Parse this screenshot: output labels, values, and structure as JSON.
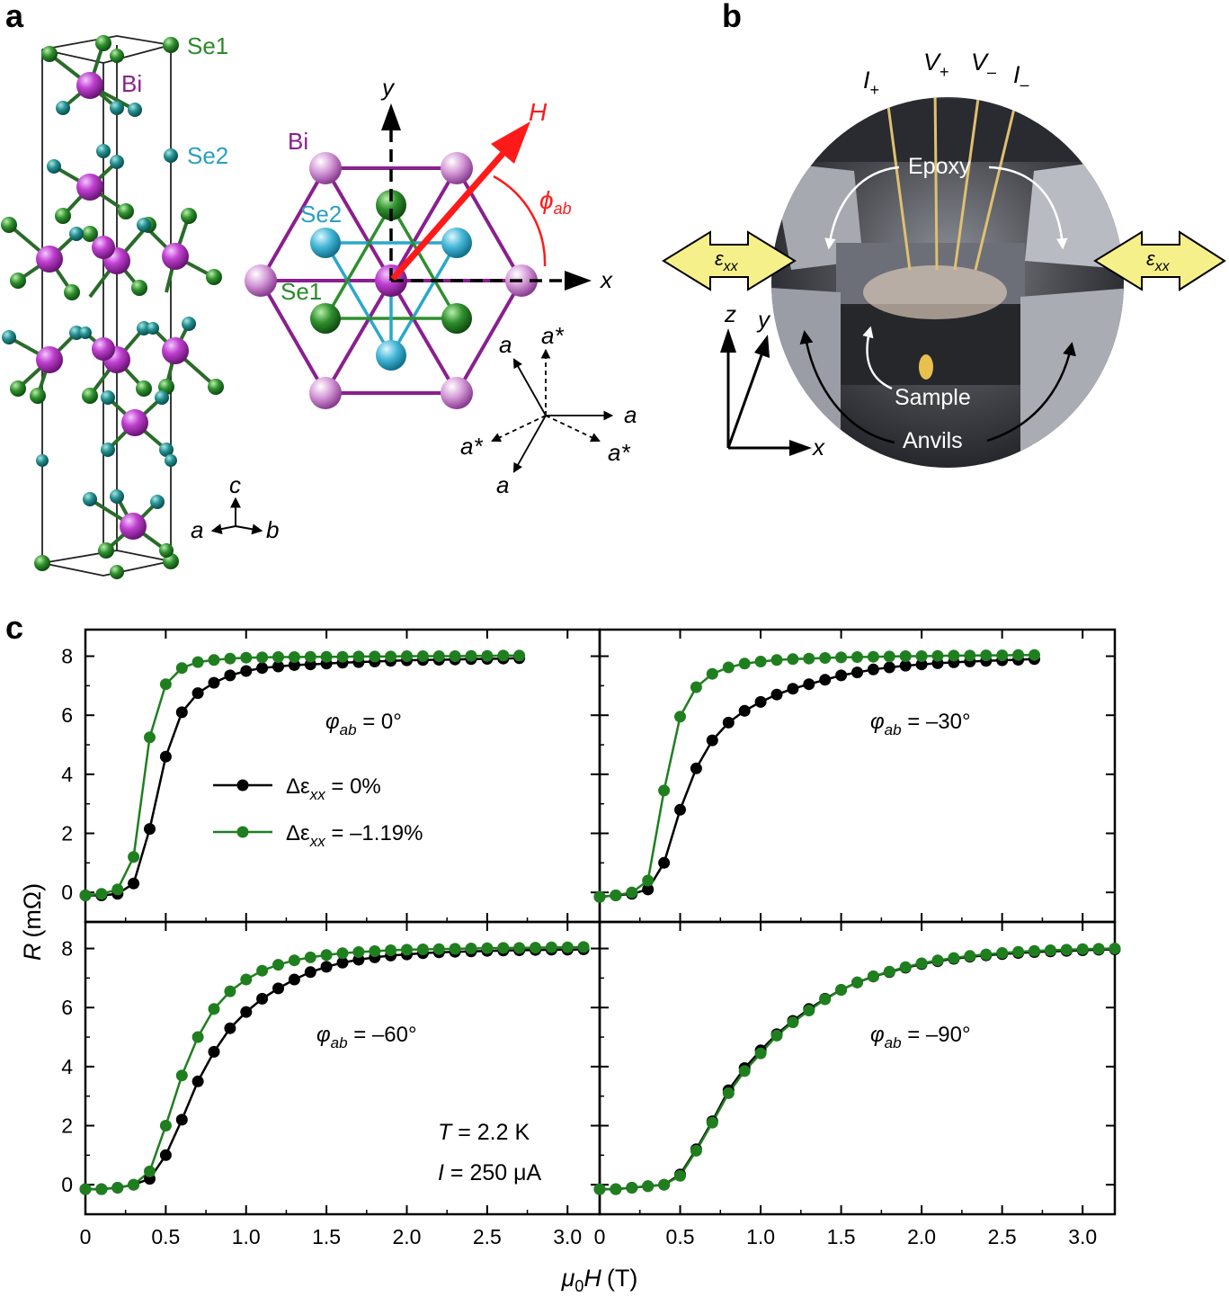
{
  "panels": {
    "a_label": "a",
    "b_label": "b",
    "c_label": "c"
  },
  "panel_a": {
    "atoms": {
      "se1": "Se1",
      "bi": "Bi",
      "se2": "Se2"
    },
    "crystal_axes": {
      "c": "c",
      "a": "a",
      "b": "b"
    },
    "plane_axes": {
      "x": "x",
      "y": "y"
    },
    "field": "H",
    "angle": "ϕ",
    "angle_sub": "ab",
    "lattice_vectors": {
      "a": "a",
      "a_star": "a*"
    },
    "colors": {
      "bi": "#c040d0",
      "se1": "#2f8f2f",
      "se2": "#2aa8c8",
      "bi_frame": "#8a1f8f",
      "field": "#ff1a1a"
    }
  },
  "panel_b": {
    "leads": [
      {
        "main": "I",
        "sub": "+"
      },
      {
        "main": "V",
        "sub": "+"
      },
      {
        "main": "V",
        "sub": "–"
      },
      {
        "main": "I",
        "sub": "–"
      }
    ],
    "labels": {
      "epoxy": "Epoxy",
      "sample": "Sample",
      "anvils": "Anvils"
    },
    "strain": {
      "main": "ε",
      "sub": "xx"
    },
    "axes": {
      "z": "z",
      "y": "y",
      "x": "x"
    },
    "colors": {
      "arrow_fill": "#f6f08a"
    }
  },
  "panel_c": {
    "ylabel_main": "R",
    "ylabel_unit": "(mΩ)",
    "xlabel_mu": "μ",
    "xlabel_sub": "0",
    "xlabel_main": "H",
    "xlabel_unit": "(T)",
    "conditions": {
      "T": "T = 2.2 K",
      "T_var": "T",
      "T_rest": " = 2.2 K",
      "I_var": "I",
      "I_rest": " = 250 μA"
    },
    "colors": {
      "unstrained": "#000000",
      "strained": "#1f7f1f"
    }
  },
  "chart_data": {
    "type": "line",
    "xlabel": "μ0H (T)",
    "ylabel": "R (mΩ)",
    "xlim": [
      0,
      3.2
    ],
    "ylim": [
      -1,
      8.9
    ],
    "xticks": [
      "0",
      "0.5",
      "1.0",
      "1.5",
      "2.0",
      "2.5",
      "3.0"
    ],
    "yticks": [
      "0",
      "2",
      "4",
      "6",
      "8"
    ],
    "legend": [
      {
        "label": "Δε",
        "sub": "xx",
        "rest": " = 0%"
      },
      {
        "label": "Δε",
        "sub": "xx",
        "rest": " = –1.19%"
      }
    ],
    "subplots": [
      {
        "angle_label": "φ",
        "angle_sub": "ab",
        "angle_value": " = 0°",
        "series": [
          {
            "name": "Δεxx = 0%",
            "x": [
              0,
              0.1,
              0.2,
              0.3,
              0.4,
              0.5,
              0.6,
              0.7,
              0.8,
              0.9,
              1.0,
              1.1,
              1.2,
              1.3,
              1.4,
              1.5,
              1.6,
              1.7,
              1.8,
              1.9,
              2.0,
              2.1,
              2.2,
              2.3,
              2.4,
              2.5,
              2.6,
              2.7
            ],
            "y": [
              -0.1,
              -0.1,
              -0.05,
              0.3,
              2.15,
              4.6,
              6.1,
              6.75,
              7.1,
              7.35,
              7.5,
              7.6,
              7.65,
              7.7,
              7.72,
              7.75,
              7.78,
              7.8,
              7.82,
              7.84,
              7.86,
              7.87,
              7.88,
              7.89,
              7.9,
              7.91,
              7.92,
              7.93
            ]
          },
          {
            "name": "Δεxx = –1.19%",
            "x": [
              0,
              0.1,
              0.2,
              0.3,
              0.4,
              0.5,
              0.6,
              0.7,
              0.8,
              0.9,
              1.0,
              1.1,
              1.2,
              1.3,
              1.4,
              1.5,
              1.6,
              1.7,
              1.8,
              1.9,
              2.0,
              2.1,
              2.2,
              2.3,
              2.4,
              2.5,
              2.6,
              2.7
            ],
            "y": [
              -0.1,
              -0.05,
              0.1,
              1.2,
              5.25,
              7.05,
              7.6,
              7.8,
              7.87,
              7.92,
              7.95,
              7.96,
              7.97,
              7.97,
              7.98,
              7.98,
              7.98,
              7.99,
              7.99,
              7.99,
              8.0,
              8.0,
              8.0,
              8.0,
              8.01,
              8.01,
              8.02,
              8.02
            ]
          }
        ]
      },
      {
        "angle_label": "φ",
        "angle_sub": "ab",
        "angle_value": " = –30°",
        "series": [
          {
            "name": "Δεxx = 0%",
            "x": [
              0,
              0.1,
              0.2,
              0.3,
              0.4,
              0.5,
              0.6,
              0.7,
              0.8,
              0.9,
              1.0,
              1.1,
              1.2,
              1.3,
              1.4,
              1.5,
              1.6,
              1.7,
              1.8,
              1.9,
              2.0,
              2.1,
              2.2,
              2.3,
              2.4,
              2.5,
              2.6,
              2.7
            ],
            "y": [
              -0.15,
              -0.1,
              -0.05,
              0.1,
              1.0,
              2.8,
              4.2,
              5.15,
              5.75,
              6.15,
              6.45,
              6.7,
              6.9,
              7.05,
              7.2,
              7.35,
              7.45,
              7.55,
              7.62,
              7.68,
              7.72,
              7.76,
              7.79,
              7.82,
              7.84,
              7.86,
              7.88,
              7.9
            ]
          },
          {
            "name": "Δεxx = –1.19%",
            "x": [
              0,
              0.1,
              0.2,
              0.3,
              0.4,
              0.5,
              0.6,
              0.7,
              0.8,
              0.9,
              1.0,
              1.1,
              1.2,
              1.3,
              1.4,
              1.5,
              1.6,
              1.7,
              1.8,
              1.9,
              2.0,
              2.1,
              2.2,
              2.3,
              2.4,
              2.5,
              2.6,
              2.7
            ],
            "y": [
              -0.15,
              -0.1,
              0.0,
              0.4,
              3.45,
              5.95,
              6.95,
              7.4,
              7.62,
              7.75,
              7.82,
              7.87,
              7.9,
              7.92,
              7.94,
              7.96,
              7.97,
              7.98,
              7.99,
              8.0,
              8.0,
              8.01,
              8.02,
              8.02,
              8.03,
              8.03,
              8.04,
              8.04
            ]
          }
        ]
      },
      {
        "angle_label": "φ",
        "angle_sub": "ab",
        "angle_value": " = –60°",
        "series": [
          {
            "name": "Δεxx = 0%",
            "x": [
              0,
              0.1,
              0.2,
              0.3,
              0.4,
              0.5,
              0.6,
              0.7,
              0.8,
              0.9,
              1.0,
              1.1,
              1.2,
              1.3,
              1.4,
              1.5,
              1.6,
              1.7,
              1.8,
              1.9,
              2.0,
              2.1,
              2.2,
              2.3,
              2.4,
              2.5,
              2.6,
              2.7,
              2.8,
              2.9,
              3.0,
              3.1
            ],
            "y": [
              -0.15,
              -0.15,
              -0.1,
              0.0,
              0.2,
              1.0,
              2.2,
              3.5,
              4.5,
              5.3,
              5.85,
              6.3,
              6.65,
              6.95,
              7.2,
              7.38,
              7.52,
              7.62,
              7.7,
              7.76,
              7.8,
              7.84,
              7.87,
              7.89,
              7.9,
              7.92,
              7.93,
              7.94,
              7.95,
              7.96,
              7.96,
              7.97
            ]
          },
          {
            "name": "Δεxx = –1.19%",
            "x": [
              0,
              0.1,
              0.2,
              0.3,
              0.4,
              0.5,
              0.6,
              0.7,
              0.8,
              0.9,
              1.0,
              1.1,
              1.2,
              1.3,
              1.4,
              1.5,
              1.6,
              1.7,
              1.8,
              1.9,
              2.0,
              2.1,
              2.2,
              2.3,
              2.4,
              2.5,
              2.6,
              2.7,
              2.8,
              2.9,
              3.0,
              3.1
            ],
            "y": [
              -0.15,
              -0.15,
              -0.1,
              0.0,
              0.45,
              2.0,
              3.7,
              5.0,
              5.95,
              6.55,
              6.95,
              7.25,
              7.45,
              7.6,
              7.7,
              7.78,
              7.84,
              7.88,
              7.91,
              7.94,
              7.96,
              7.97,
              7.98,
              7.99,
              8.0,
              8.01,
              8.02,
              8.02,
              8.03,
              8.04,
              8.04,
              8.05
            ]
          }
        ]
      },
      {
        "angle_label": "φ",
        "angle_sub": "ab",
        "angle_value": " = –90°",
        "series": [
          {
            "name": "Δεxx = 0%",
            "x": [
              0,
              0.1,
              0.2,
              0.3,
              0.4,
              0.5,
              0.6,
              0.7,
              0.8,
              0.9,
              1.0,
              1.1,
              1.2,
              1.3,
              1.4,
              1.5,
              1.6,
              1.7,
              1.8,
              1.9,
              2.0,
              2.1,
              2.2,
              2.3,
              2.4,
              2.5,
              2.6,
              2.7,
              2.8,
              2.9,
              3.0,
              3.1,
              3.2
            ],
            "y": [
              -0.15,
              -0.15,
              -0.1,
              -0.05,
              0.0,
              0.35,
              1.2,
              2.15,
              3.2,
              3.95,
              4.55,
              5.1,
              5.55,
              5.95,
              6.3,
              6.6,
              6.85,
              7.05,
              7.2,
              7.35,
              7.47,
              7.57,
              7.65,
              7.72,
              7.77,
              7.81,
              7.85,
              7.88,
              7.9,
              7.92,
              7.94,
              7.96,
              7.97
            ]
          },
          {
            "name": "Δεxx = –1.19%",
            "x": [
              0,
              0.1,
              0.2,
              0.3,
              0.4,
              0.5,
              0.6,
              0.7,
              0.8,
              0.9,
              1.0,
              1.1,
              1.2,
              1.3,
              1.4,
              1.5,
              1.6,
              1.7,
              1.8,
              1.9,
              2.0,
              2.1,
              2.2,
              2.3,
              2.4,
              2.5,
              2.6,
              2.7,
              2.8,
              2.9,
              3.0,
              3.1,
              3.2
            ],
            "y": [
              -0.15,
              -0.15,
              -0.1,
              -0.05,
              0.0,
              0.3,
              1.15,
              2.1,
              3.1,
              3.85,
              4.45,
              5.05,
              5.5,
              5.9,
              6.28,
              6.6,
              6.85,
              7.06,
              7.22,
              7.37,
              7.5,
              7.6,
              7.68,
              7.75,
              7.8,
              7.85,
              7.89,
              7.92,
              7.94,
              7.96,
              7.98,
              7.99,
              8.0
            ]
          }
        ]
      }
    ]
  }
}
